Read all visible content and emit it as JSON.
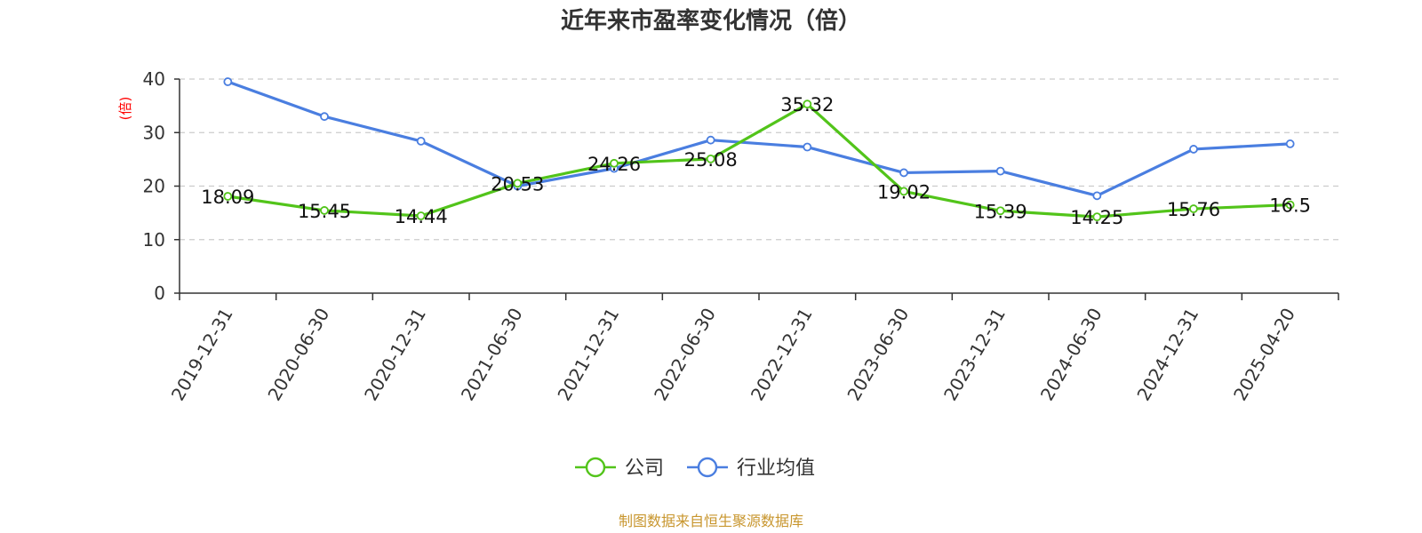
{
  "chart_data": {
    "type": "line",
    "title": "近年来市盈率变化情况（倍）",
    "ylabel": "(倍)",
    "xlabel": "",
    "ylim": [
      0,
      40
    ],
    "yticks": [
      0,
      10,
      20,
      30,
      40
    ],
    "grid": true,
    "legend_position": "bottom-center",
    "categories": [
      "2019-12-31",
      "2020-06-30",
      "2020-12-31",
      "2021-06-30",
      "2021-12-31",
      "2022-06-30",
      "2022-12-31",
      "2023-06-30",
      "2023-12-31",
      "2024-06-30",
      "2024-12-31",
      "2025-04-20"
    ],
    "series": [
      {
        "name": "公司",
        "color": "#52c41a",
        "values": [
          18.09,
          15.45,
          14.44,
          20.53,
          24.26,
          25.08,
          35.32,
          19.02,
          15.39,
          14.25,
          15.76,
          16.5
        ],
        "labels": [
          "18.09",
          "15.45",
          "14.44",
          "20.53",
          "24.26",
          "25.08",
          "35.32",
          "19.02",
          "15.39",
          "14.25",
          "15.76",
          "16.5"
        ]
      },
      {
        "name": "行业均值",
        "color": "#4a7ee0",
        "values": [
          39.5,
          33.0,
          28.4,
          20.0,
          23.3,
          28.6,
          27.3,
          22.5,
          22.8,
          18.2,
          26.9,
          27.9
        ]
      }
    ],
    "source_note": "制图数据来自恒生聚源数据库"
  }
}
